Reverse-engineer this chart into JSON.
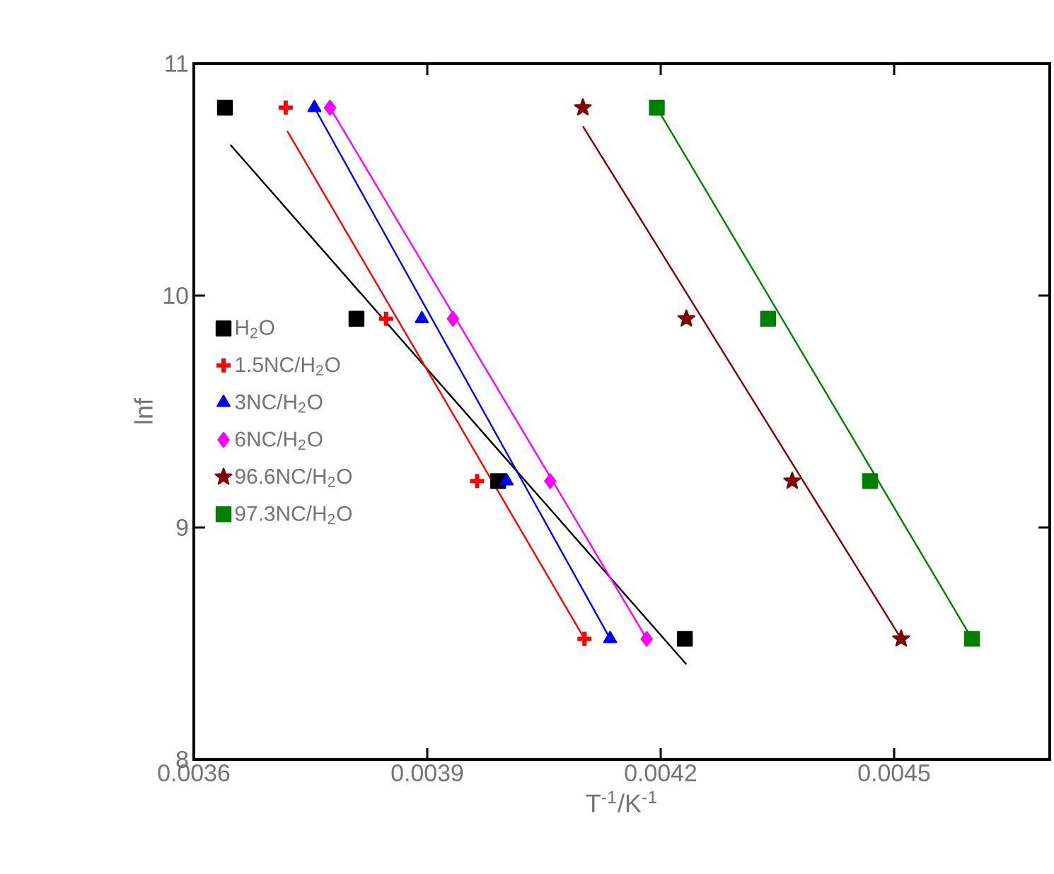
{
  "chart_data": {
    "type": "scatter",
    "xlabel": "T$^{-1}$/K$^{-1}$",
    "ylabel": "lnf",
    "xlim": [
      0.0036,
      0.0047
    ],
    "ylim": [
      8,
      11
    ],
    "xticks": [
      0.0036,
      0.0039,
      0.0042,
      0.0045
    ],
    "yticks": [
      8,
      9,
      10,
      11
    ],
    "grid": false,
    "legend": "left",
    "series": [
      {
        "name": "H$_{2}$O",
        "color": "#000000",
        "marker": "square",
        "x": [
          0.00364,
          0.003809,
          0.003991,
          0.004231
        ],
        "values": [
          10.81,
          9.9,
          9.2,
          8.52
        ]
      },
      {
        "name": "1.5NC/H$_{2}$O",
        "color": "#ff0000",
        "marker": "cross",
        "x": [
          0.003718,
          0.003847,
          0.003964,
          0.004102
        ],
        "values": [
          10.81,
          9.9,
          9.2,
          8.52
        ]
      },
      {
        "name": "3NC/H$_{2}$O",
        "color": "#0000ff",
        "marker": "triangle",
        "x": [
          0.003755,
          0.003893,
          0.004002,
          0.004135
        ],
        "values": [
          10.81,
          9.9,
          9.2,
          8.52
        ]
      },
      {
        "name": "6NC/H$_{2}$O",
        "color": "#ff00ff",
        "marker": "diamond",
        "x": [
          0.003775,
          0.003933,
          0.004058,
          0.004182
        ],
        "values": [
          10.81,
          9.9,
          9.2,
          8.52
        ]
      },
      {
        "name": "96.6NC/H$_{2}$O",
        "color": "#800000",
        "marker": "star",
        "x": [
          0.0041,
          0.004233,
          0.004369,
          0.004509
        ],
        "values": [
          10.81,
          9.9,
          9.2,
          8.52
        ]
      },
      {
        "name": "97.3NC/H$_{2}$O",
        "color": "#008000",
        "marker": "square",
        "x": [
          0.004195,
          0.004338,
          0.004469,
          0.0046
        ],
        "values": [
          10.81,
          9.9,
          9.2,
          8.52
        ]
      },
      {
        "type": "line",
        "color": "#000000",
        "marker": "none",
        "line_style": "solid",
        "x": [
          0.003647,
          0.004233
        ],
        "values": [
          10.65,
          8.41
        ]
      },
      {
        "type": "line",
        "color": "#ff0000",
        "marker": "none",
        "line_style": "solid",
        "x": [
          0.00372,
          0.004102
        ],
        "values": [
          10.71,
          8.52
        ]
      },
      {
        "type": "line",
        "color": "#0000ff",
        "marker": "none",
        "line_style": "solid",
        "x": [
          0.003755,
          0.004135
        ],
        "values": [
          10.81,
          8.52
        ]
      },
      {
        "type": "line",
        "color": "#ff00ff",
        "marker": "none",
        "line_style": "solid",
        "x": [
          0.003775,
          0.004182
        ],
        "values": [
          10.81,
          8.52
        ]
      },
      {
        "type": "line",
        "color": "#800000",
        "marker": "none",
        "line_style": "solid",
        "x": [
          0.0041,
          0.004509
        ],
        "values": [
          10.73,
          8.52
        ]
      },
      {
        "type": "line",
        "color": "#008000",
        "marker": "none",
        "line_style": "solid",
        "x": [
          0.004195,
          0.0046
        ],
        "values": [
          10.81,
          8.52
        ]
      }
    ]
  }
}
